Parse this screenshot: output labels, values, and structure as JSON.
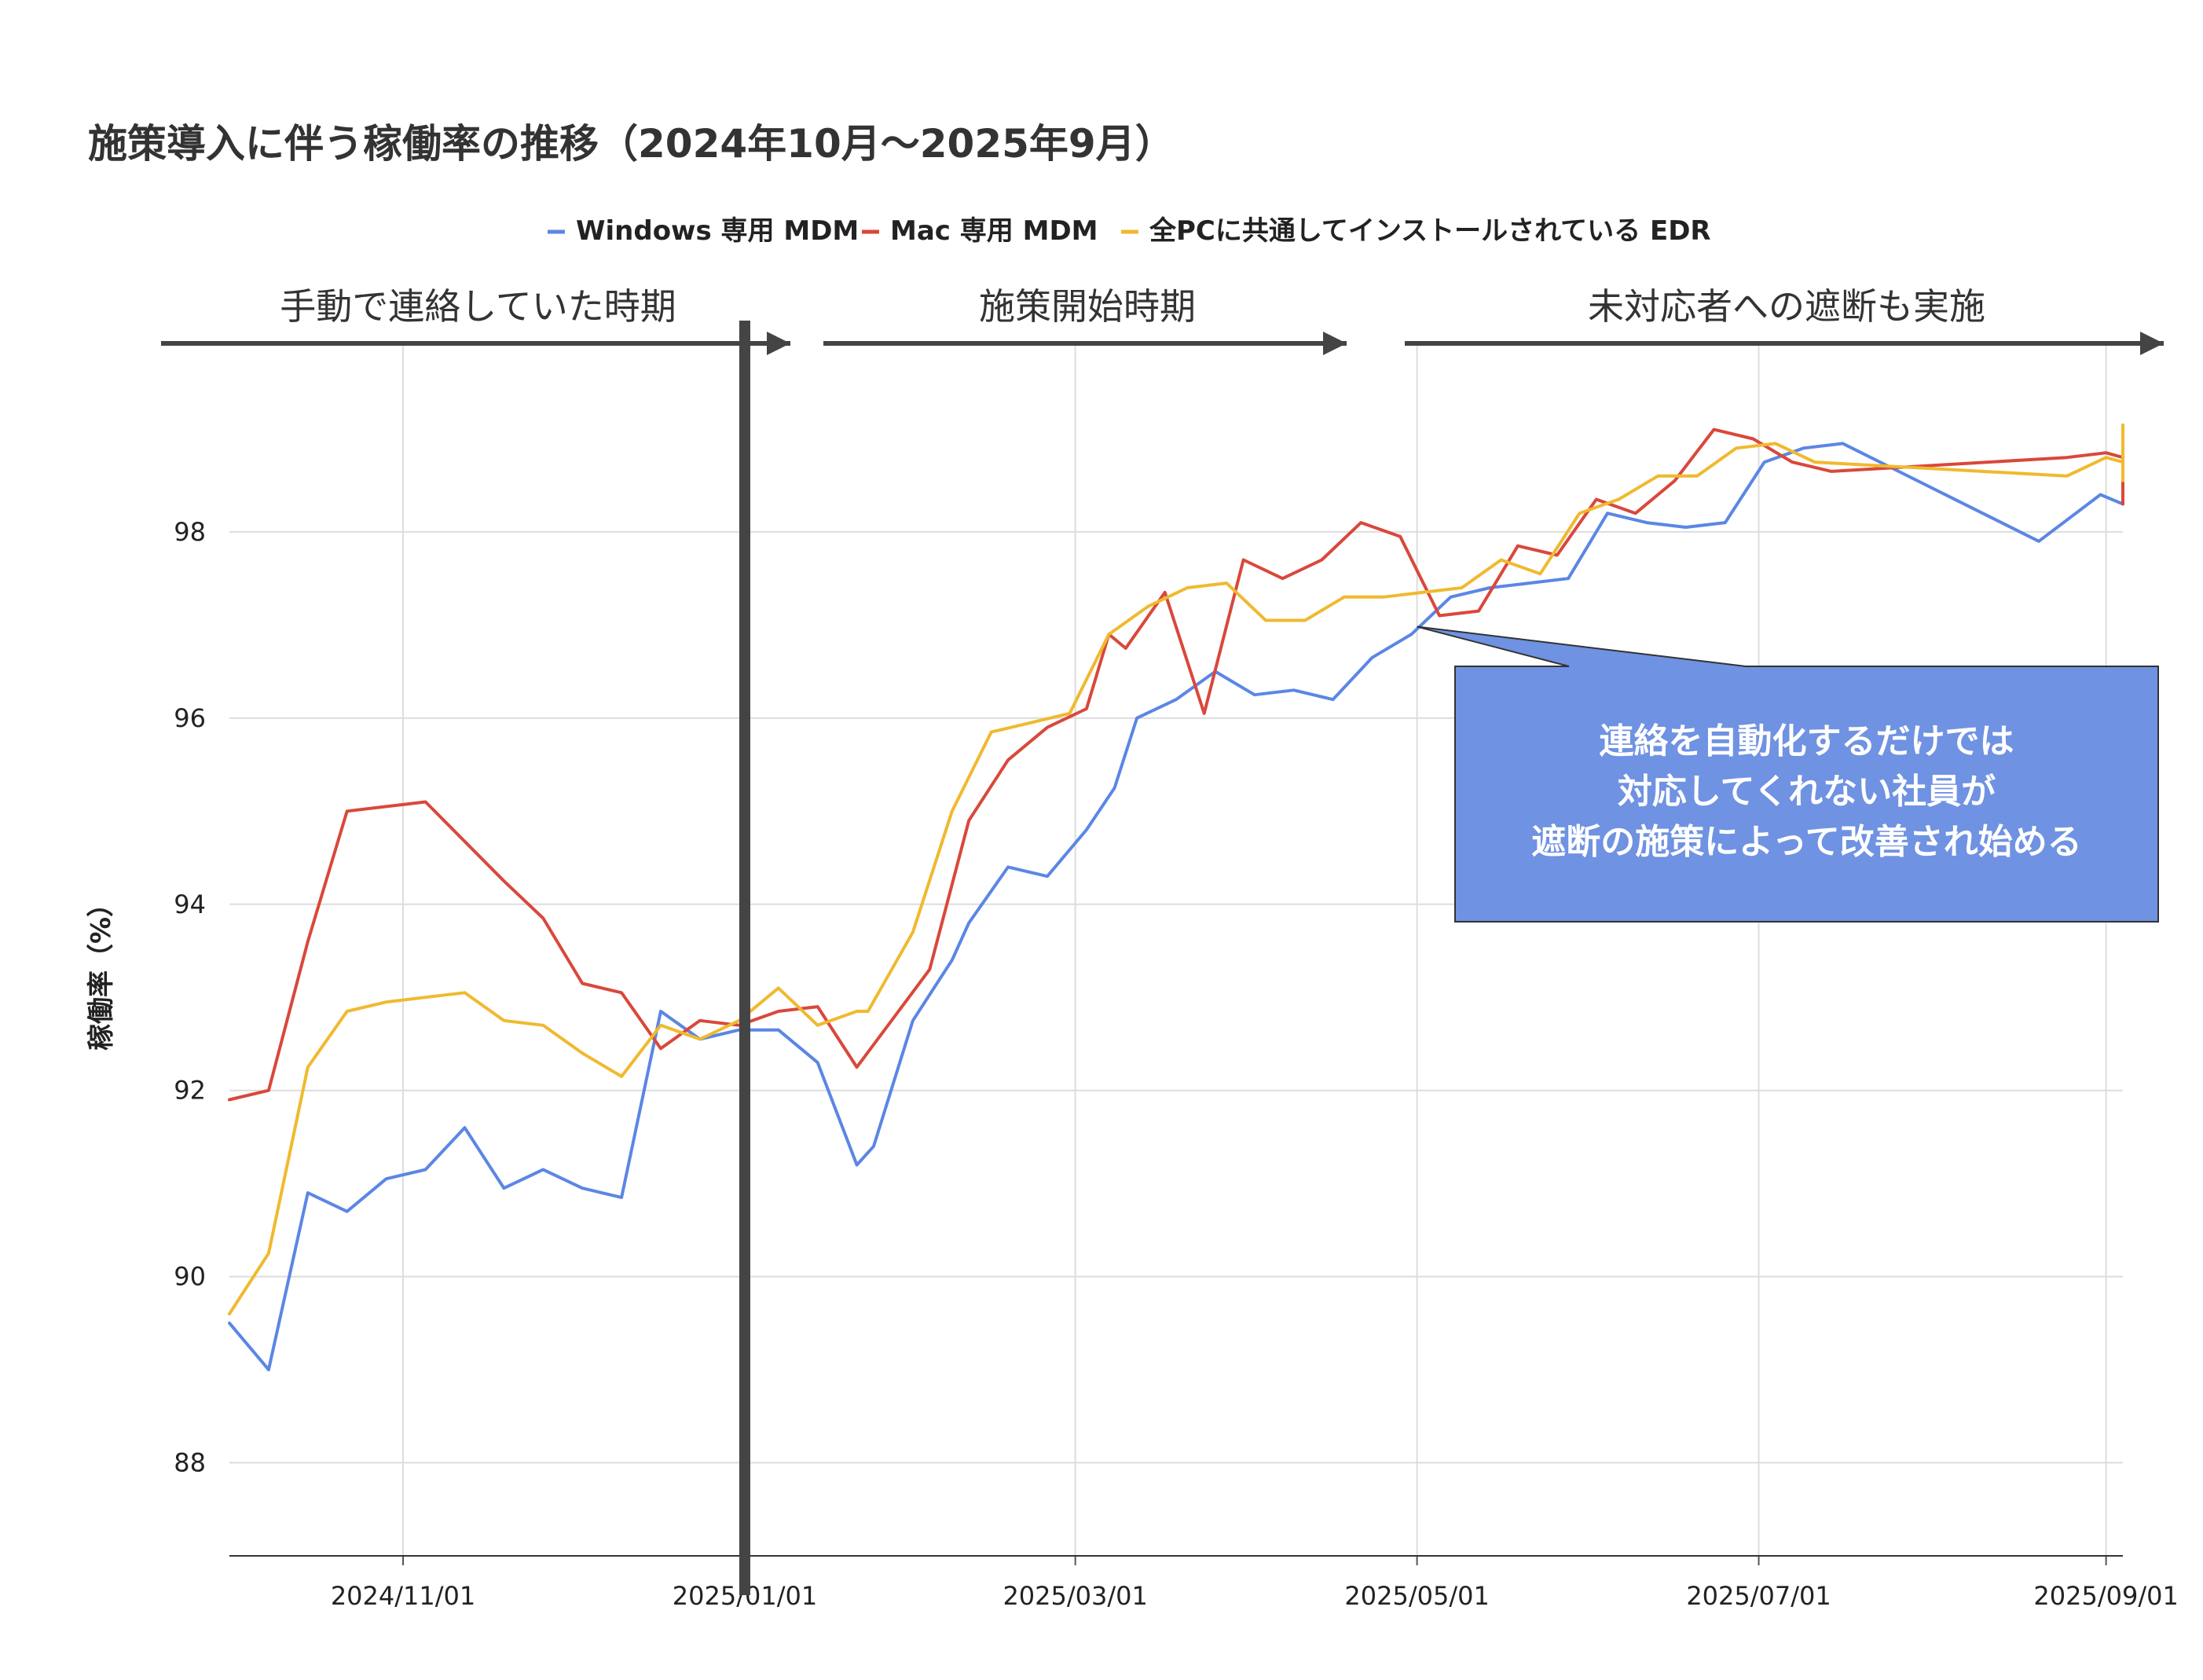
{
  "chart_data": {
    "type": "line",
    "title": "施策導入に伴う稼働率の推移（2024年10月〜2025年9月）",
    "ylabel": "稼働率（%）",
    "xlabel": "",
    "x_range": [
      "2024-10-01",
      "2025-09-04"
    ],
    "ylim": [
      87,
      100
    ],
    "y_ticks": [
      88,
      90,
      92,
      94,
      96,
      98
    ],
    "x_ticks": [
      "2024/11/01",
      "2025/01/01",
      "2025/03/01",
      "2025/05/01",
      "2025/07/01",
      "2025/09/01"
    ],
    "x_tick_dates": [
      "2024-11-01",
      "2025-01-01",
      "2025-03-01",
      "2025-05-01",
      "2025-07-01",
      "2025-09-01"
    ],
    "grid": true,
    "legend_position": "top",
    "series": [
      {
        "name": "Windows 専用 MDM",
        "color": "#5b86e5",
        "points": [
          [
            "2024-10-01",
            89.5
          ],
          [
            "2024-10-08",
            89.0
          ],
          [
            "2024-10-15",
            90.9
          ],
          [
            "2024-10-22",
            90.7
          ],
          [
            "2024-10-29",
            91.05
          ],
          [
            "2024-11-05",
            91.15
          ],
          [
            "2024-11-12",
            91.6
          ],
          [
            "2024-11-19",
            90.95
          ],
          [
            "2024-11-26",
            91.15
          ],
          [
            "2024-12-03",
            90.95
          ],
          [
            "2024-12-10",
            90.85
          ],
          [
            "2024-12-17",
            92.85
          ],
          [
            "2024-12-24",
            92.55
          ],
          [
            "2024-12-31",
            92.65
          ],
          [
            "2025-01-07",
            92.65
          ],
          [
            "2025-01-14",
            92.3
          ],
          [
            "2025-01-21",
            91.2
          ],
          [
            "2025-01-24",
            91.4
          ],
          [
            "2025-01-31",
            92.75
          ],
          [
            "2025-02-07",
            93.4
          ],
          [
            "2025-02-10",
            93.8
          ],
          [
            "2025-02-17",
            94.4
          ],
          [
            "2025-02-24",
            94.3
          ],
          [
            "2025-03-03",
            94.8
          ],
          [
            "2025-03-08",
            95.25
          ],
          [
            "2025-03-12",
            96.0
          ],
          [
            "2025-03-19",
            96.2
          ],
          [
            "2025-03-26",
            96.5
          ],
          [
            "2025-04-02",
            96.25
          ],
          [
            "2025-04-09",
            96.3
          ],
          [
            "2025-04-16",
            96.2
          ],
          [
            "2025-04-23",
            96.65
          ],
          [
            "2025-04-30",
            96.9
          ],
          [
            "2025-05-07",
            97.3
          ],
          [
            "2025-05-14",
            97.4
          ],
          [
            "2025-05-21",
            97.45
          ],
          [
            "2025-05-28",
            97.5
          ],
          [
            "2025-06-04",
            98.2
          ],
          [
            "2025-06-11",
            98.1
          ],
          [
            "2025-06-18",
            98.05
          ],
          [
            "2025-06-25",
            98.1
          ],
          [
            "2025-07-02",
            98.75
          ],
          [
            "2025-07-09",
            98.9
          ],
          [
            "2025-07-16",
            98.95
          ],
          [
            "2025-08-20",
            97.9
          ],
          [
            "2025-08-31",
            98.4
          ],
          [
            "2025-09-06",
            98.3
          ],
          [
            "2025-09-07",
            98.55
          ],
          [
            "2025-09-14",
            98.75
          ],
          [
            "2025-09-21",
            98.75
          ]
        ]
      },
      {
        "name": "Mac 専用 MDM",
        "color": "#d9483b",
        "points": [
          [
            "2024-10-01",
            91.9
          ],
          [
            "2024-10-08",
            92.0
          ],
          [
            "2024-10-15",
            93.6
          ],
          [
            "2024-10-22",
            95.0
          ],
          [
            "2024-10-29",
            95.05
          ],
          [
            "2024-11-05",
            95.1
          ],
          [
            "2024-11-19",
            94.25
          ],
          [
            "2024-11-26",
            93.85
          ],
          [
            "2024-12-03",
            93.15
          ],
          [
            "2024-12-10",
            93.05
          ],
          [
            "2024-12-17",
            92.45
          ],
          [
            "2024-12-24",
            92.75
          ],
          [
            "2024-12-31",
            92.7
          ],
          [
            "2025-01-07",
            92.85
          ],
          [
            "2025-01-14",
            92.9
          ],
          [
            "2025-01-21",
            92.25
          ],
          [
            "2025-02-03",
            93.3
          ],
          [
            "2025-02-10",
            94.9
          ],
          [
            "2025-02-17",
            95.55
          ],
          [
            "2025-02-24",
            95.9
          ],
          [
            "2025-03-03",
            96.1
          ],
          [
            "2025-03-07",
            96.9
          ],
          [
            "2025-03-10",
            96.75
          ],
          [
            "2025-03-17",
            97.35
          ],
          [
            "2025-03-24",
            96.05
          ],
          [
            "2025-03-31",
            97.7
          ],
          [
            "2025-04-07",
            97.5
          ],
          [
            "2025-04-14",
            97.7
          ],
          [
            "2025-04-21",
            98.1
          ],
          [
            "2025-04-28",
            97.95
          ],
          [
            "2025-05-05",
            97.1
          ],
          [
            "2025-05-12",
            97.15
          ],
          [
            "2025-05-19",
            97.85
          ],
          [
            "2025-05-26",
            97.75
          ],
          [
            "2025-06-02",
            98.35
          ],
          [
            "2025-06-09",
            98.2
          ],
          [
            "2025-06-16",
            98.55
          ],
          [
            "2025-06-23",
            99.1
          ],
          [
            "2025-06-30",
            99.0
          ],
          [
            "2025-07-07",
            98.75
          ],
          [
            "2025-07-14",
            98.65
          ],
          [
            "2025-07-28",
            98.7
          ],
          [
            "2025-08-25",
            98.8
          ],
          [
            "2025-09-01",
            98.85
          ],
          [
            "2025-09-06",
            98.8
          ],
          [
            "2025-09-07",
            98.3
          ],
          [
            "2025-09-14",
            98.45
          ],
          [
            "2025-09-21",
            98.7
          ]
        ]
      },
      {
        "name": "全PCに共通してインストールされている EDR",
        "color": "#f0b92f",
        "points": [
          [
            "2024-10-01",
            89.6
          ],
          [
            "2024-10-08",
            90.25
          ],
          [
            "2024-10-15",
            92.25
          ],
          [
            "2024-10-22",
            92.85
          ],
          [
            "2024-10-29",
            92.95
          ],
          [
            "2024-11-05",
            93.0
          ],
          [
            "2024-11-12",
            93.05
          ],
          [
            "2024-11-19",
            92.75
          ],
          [
            "2024-11-26",
            92.7
          ],
          [
            "2024-12-03",
            92.4
          ],
          [
            "2024-12-10",
            92.15
          ],
          [
            "2024-12-17",
            92.7
          ],
          [
            "2024-12-24",
            92.55
          ],
          [
            "2024-12-31",
            92.75
          ],
          [
            "2025-01-07",
            93.1
          ],
          [
            "2025-01-14",
            92.7
          ],
          [
            "2025-01-21",
            92.85
          ],
          [
            "2025-01-23",
            92.85
          ],
          [
            "2025-01-31",
            93.7
          ],
          [
            "2025-02-07",
            95.0
          ],
          [
            "2025-02-14",
            95.85
          ],
          [
            "2025-02-21",
            95.95
          ],
          [
            "2025-02-28",
            96.05
          ],
          [
            "2025-03-07",
            96.9
          ],
          [
            "2025-03-14",
            97.2
          ],
          [
            "2025-03-21",
            97.4
          ],
          [
            "2025-03-28",
            97.45
          ],
          [
            "2025-04-04",
            97.05
          ],
          [
            "2025-04-11",
            97.05
          ],
          [
            "2025-04-18",
            97.3
          ],
          [
            "2025-04-25",
            97.3
          ],
          [
            "2025-05-02",
            97.35
          ],
          [
            "2025-05-09",
            97.4
          ],
          [
            "2025-05-16",
            97.7
          ],
          [
            "2025-05-23",
            97.55
          ],
          [
            "2025-05-30",
            98.2
          ],
          [
            "2025-06-06",
            98.35
          ],
          [
            "2025-06-13",
            98.6
          ],
          [
            "2025-06-20",
            98.6
          ],
          [
            "2025-06-27",
            98.9
          ],
          [
            "2025-07-04",
            98.95
          ],
          [
            "2025-07-11",
            98.75
          ],
          [
            "2025-08-25",
            98.6
          ],
          [
            "2025-09-01",
            98.8
          ],
          [
            "2025-09-06",
            98.75
          ],
          [
            "2025-09-07",
            98.55
          ],
          [
            "2025-09-14",
            98.8
          ],
          [
            "2025-09-21",
            99.15
          ]
        ]
      }
    ],
    "phases": [
      {
        "label": "手動で連絡していた時期",
        "start": "2024-10-01",
        "end": "2024-12-31"
      },
      {
        "label": "施策開始時期",
        "start": "2025-01-01",
        "end": "2025-04-20"
      },
      {
        "label": "未対応者への遮断も実施",
        "start": "2025-05-01",
        "end": "2025-09-25"
      }
    ],
    "divider_date": "2025-01-01",
    "callout": {
      "lines": [
        "連絡を自動化するだけでは",
        "対応してくれない社員が",
        "遮断の施策によって改善され始める"
      ],
      "pointer_date": "2025-05-01",
      "pointer_value": 97.1,
      "fill": "#6f92e2"
    }
  }
}
